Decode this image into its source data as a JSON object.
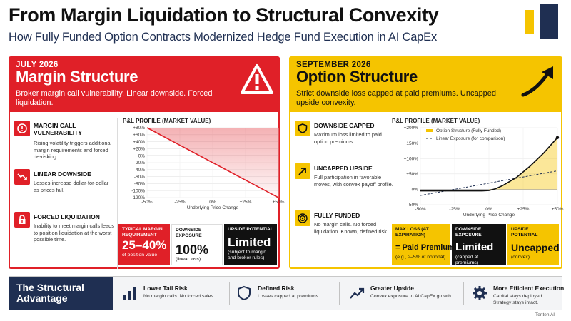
{
  "header": {
    "title": "From Margin Liquidation to Structural Convexity",
    "subtitle": "How Fully Funded Option Contracts Modernized Hedge Fund Execution in AI CapEx"
  },
  "colors": {
    "red": "#e02028",
    "yellow": "#f5c400",
    "navy": "#1f2f52",
    "dark": "#111111"
  },
  "margin_panel": {
    "date": "JULY 2026",
    "title": "Margin Structure",
    "description": "Broker margin call vulnerability. Linear downside. Forced liquidation.",
    "header_icon": "warning-triangle-icon",
    "features": [
      {
        "icon": "alert-circle-icon",
        "title": "MARGIN CALL VULNERABILITY",
        "text": "Rising volatility triggers additional margin requirements and forced de-risking."
      },
      {
        "icon": "trend-down-icon",
        "title": "LINEAR DOWNSIDE",
        "text": "Losses increase dollar-for-dollar as prices fall."
      },
      {
        "icon": "lock-icon",
        "title": "FORCED LIQUIDATION",
        "text": "Inability to meet margin calls leads to position liquidation at the worst possible time."
      }
    ],
    "chart_title": "P&L PROFILE (MARKET VALUE)",
    "metrics": [
      {
        "label": "TYPICAL MARGIN REQUIREMENT",
        "value": "25–40%",
        "sub": "of position value"
      },
      {
        "label": "DOWNSIDE EXPOSURE",
        "value": "100%",
        "sub": "(linear loss)"
      },
      {
        "label": "UPSIDE POTENTIAL",
        "value": "Limited",
        "sub": "(subject to margin and broker rules)"
      }
    ]
  },
  "option_panel": {
    "date": "SEPTEMBER 2026",
    "title": "Option Structure",
    "description": "Strict downside loss capped at paid premiums. Uncapped upside convexity.",
    "header_icon": "arrow-up-right-icon",
    "features": [
      {
        "icon": "shield-icon",
        "title": "DOWNSIDE CAPPED",
        "text": "Maximum loss limited to paid option premiums."
      },
      {
        "icon": "arrow-up-right-icon",
        "title": "UNCAPPED UPSIDE",
        "text": "Full participation in favorable moves, with convex payoff profile."
      },
      {
        "icon": "target-icon",
        "title": "FULLY FUNDED",
        "text": "No margin calls. No forced liquidation. Known, defined risk."
      }
    ],
    "chart_title": "P&L PROFILE (MARKET VALUE)",
    "metrics": [
      {
        "label": "MAX LOSS (AT EXPIRATION)",
        "value": "= Paid Premiums",
        "sub": "(e.g., 2–5% of notional)"
      },
      {
        "label": "DOWNSIDE EXPOSURE",
        "value": "Limited",
        "sub": "(capped at premiums)"
      },
      {
        "label": "UPSIDE POTENTIAL",
        "value": "Uncapped",
        "sub": "(convex)"
      }
    ]
  },
  "chart_data": [
    {
      "type": "line",
      "title": "P&L PROFILE (MARKET VALUE)",
      "xlabel": "Underlying Price Change",
      "ylabel": "",
      "x_ticks": [
        "-50%",
        "-25%",
        "0%",
        "+25%",
        "+50%"
      ],
      "y_ticks": [
        "+80%",
        "+60%",
        "+40%",
        "+20%",
        "0%",
        "-20%",
        "-40%",
        "-60%",
        "-80%",
        "-100%",
        "-120%"
      ],
      "xlim": [
        -50,
        50
      ],
      "ylim": [
        -120,
        80
      ],
      "series": [
        {
          "name": "",
          "x": [
            -50,
            50
          ],
          "y": [
            80,
            -120
          ]
        }
      ],
      "fill": "area above zero-loss line shaded red",
      "grid": true,
      "legend": "none"
    },
    {
      "type": "line",
      "title": "P&L PROFILE (MARKET VALUE)",
      "xlabel": "Underlying Price Change",
      "ylabel": "",
      "x_ticks": [
        "-50%",
        "-25%",
        "0%",
        "+25%",
        "+50%"
      ],
      "y_ticks": [
        "+200%",
        "+150%",
        "+100%",
        "+50%",
        "0%",
        "-50%"
      ],
      "xlim": [
        -50,
        50
      ],
      "ylim": [
        -50,
        200
      ],
      "series": [
        {
          "name": "Option Structure (Fully Funded)",
          "x": [
            -50,
            -25,
            -5,
            0,
            5,
            10,
            20,
            30,
            40,
            50
          ],
          "y": [
            -5,
            -5,
            -5,
            -4,
            2,
            12,
            38,
            75,
            118,
            168
          ]
        },
        {
          "name": "Linear Exposure (for comparison)",
          "x": [
            -50,
            50
          ],
          "y": [
            -20,
            60
          ]
        }
      ],
      "grid": true,
      "legend": "top-left"
    }
  ],
  "bottom_bar": {
    "title": "The Structural Advantage",
    "items": [
      {
        "icon": "bar-chart-icon",
        "title": "Lower Tail Risk",
        "text": "No margin calls. No forced sales."
      },
      {
        "icon": "shield-icon",
        "title": "Defined Risk",
        "text": "Losses capped at premiums."
      },
      {
        "icon": "trend-up-icon",
        "title": "Greater Upside",
        "text": "Convex exposure to AI CapEx growth."
      },
      {
        "icon": "gear-icon",
        "title": "More Efficient Execution",
        "text": "Capital stays deployed. Strategy stays intact."
      }
    ]
  },
  "credit": "Tenten AI"
}
